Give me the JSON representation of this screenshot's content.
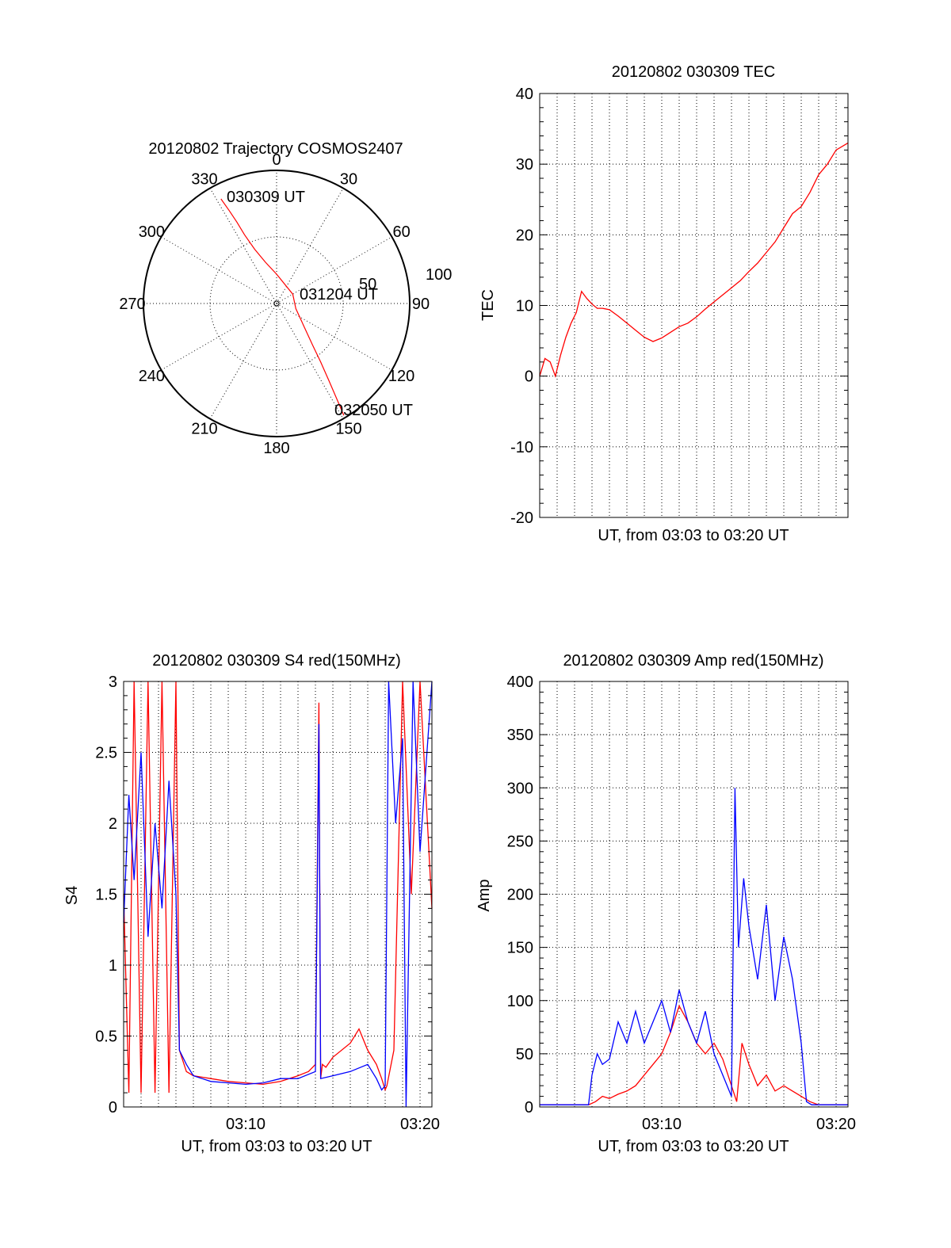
{
  "colors": {
    "red": "#ff0000",
    "blue": "#0000ff",
    "axis": "#000000"
  },
  "chart_data": [
    {
      "id": "polar",
      "type": "polar",
      "title": "20120802 Trajectory COSMOS2407",
      "r_ticks": [
        "50",
        "100"
      ],
      "azimuth_labels": [
        "0",
        "30",
        "60",
        "90",
        "120",
        "150",
        "180",
        "210",
        "240",
        "270",
        "300",
        "330"
      ],
      "zenith_range": [
        0,
        100
      ],
      "track": {
        "color": "red",
        "points": [
          [
            332,
            89
          ],
          [
            333,
            78
          ],
          [
            334,
            68
          ],
          [
            335,
            57
          ],
          [
            338,
            44
          ],
          [
            345,
            32
          ],
          [
            360,
            22
          ],
          [
            60,
            14
          ],
          [
            105,
            15
          ],
          [
            130,
            27
          ],
          [
            139,
            41
          ],
          [
            143,
            55
          ],
          [
            146,
            71
          ],
          [
            148,
            87
          ],
          [
            149,
            98
          ]
        ]
      },
      "annotations": [
        {
          "text": "030309 UT",
          "at": [
            332,
            89
          ]
        },
        {
          "text": "031204 UT",
          "at": [
            105,
            15
          ]
        },
        {
          "text": "032050 UT",
          "at": [
            149,
            98
          ]
        }
      ]
    },
    {
      "id": "tec",
      "type": "line",
      "title": "20120802 030309 TEC",
      "ylabel": "TEC",
      "xlabel": "UT, from 03:03 to 03:20 UT",
      "xlim": [
        0,
        17.68
      ],
      "ylim": [
        -20,
        40
      ],
      "yticks": [
        "-20",
        "-10",
        "0",
        "10",
        "20",
        "30",
        "40"
      ],
      "xticks": [],
      "series": [
        {
          "color": "red",
          "x": [
            0,
            0.3,
            0.6,
            0.9,
            1.2,
            1.5,
            1.8,
            2.1,
            2.4,
            2.7,
            3.0,
            3.3,
            3.6,
            4.0,
            4.5,
            5.0,
            5.5,
            6.0,
            6.5,
            7.0,
            7.5,
            8.0,
            8.5,
            9.0,
            9.5,
            10.0,
            10.5,
            11.0,
            11.5,
            12.0,
            12.5,
            13.0,
            13.5,
            14.0,
            14.5,
            15.0,
            15.5,
            16.0,
            16.5,
            17.0,
            17.68
          ],
          "y": [
            0,
            2.5,
            2,
            0,
            3,
            5.5,
            7.5,
            9,
            12,
            11,
            10.2,
            9.6,
            9.6,
            9.4,
            8.5,
            7.5,
            6.5,
            5.5,
            4.9,
            5.4,
            6.2,
            7.0,
            7.5,
            8.4,
            9.5,
            10.5,
            11.5,
            12.5,
            13.5,
            14.8,
            16,
            17.5,
            19,
            21,
            23,
            24,
            26,
            28.5,
            30,
            32,
            33
          ]
        }
      ]
    },
    {
      "id": "s4",
      "type": "line",
      "title": "20120802 030309 S4 red(150MHz)",
      "ylabel": "S4",
      "xlabel": "UT, from 03:03 to 03:20 UT",
      "xlim": [
        0,
        17.68
      ],
      "ylim": [
        0,
        3
      ],
      "yticks": [
        "0",
        "0.5",
        "1",
        "1.5",
        "2",
        "2.5",
        "3"
      ],
      "xticks": [
        {
          "v": 7,
          "t": "03:10"
        },
        {
          "v": 17,
          "t": "03:20"
        }
      ],
      "series": [
        {
          "color": "red",
          "x": [
            0,
            0.3,
            0.6,
            1.0,
            1.4,
            1.8,
            2.2,
            2.6,
            3.0,
            3.2,
            3.6,
            4.0,
            5.0,
            6.0,
            7.0,
            8.0,
            9.0,
            10.0,
            10.6,
            11.0,
            11.2,
            11.3,
            11.4,
            11.6,
            12.0,
            13.0,
            13.5,
            14.0,
            14.5,
            14.8,
            15.0,
            15.1,
            15.5,
            16.0,
            16.5,
            17.0,
            17.68
          ],
          "y": [
            1.5,
            0.1,
            3,
            0.1,
            3,
            0.1,
            3,
            0.1,
            3,
            0.4,
            0.25,
            0.22,
            0.2,
            0.18,
            0.17,
            0.16,
            0.18,
            0.22,
            0.25,
            0.3,
            2.85,
            0.2,
            0.3,
            0.28,
            0.35,
            0.45,
            0.55,
            0.4,
            0.3,
            0.2,
            0.12,
            0.15,
            0.4,
            3,
            1.5,
            3,
            1.4
          ]
        },
        {
          "color": "blue",
          "x": [
            0,
            0.3,
            0.6,
            1.0,
            1.4,
            1.8,
            2.2,
            2.6,
            3.0,
            3.2,
            3.6,
            4.0,
            5.0,
            6.0,
            7.0,
            8.0,
            9.0,
            10.0,
            11.0,
            11.2,
            11.3,
            12.0,
            13.0,
            14.0,
            14.5,
            14.8,
            15.0,
            15.2,
            15.6,
            16.0,
            16.2,
            16.6,
            17.0,
            17.68
          ],
          "y": [
            1.3,
            2.2,
            1.6,
            2.5,
            1.2,
            2.0,
            1.4,
            2.3,
            1.5,
            0.4,
            0.3,
            0.22,
            0.18,
            0.17,
            0.16,
            0.17,
            0.2,
            0.2,
            0.25,
            2.7,
            0.2,
            0.22,
            0.25,
            0.3,
            0.2,
            0.12,
            0.15,
            3,
            2.0,
            2.6,
            0.0,
            3,
            1.8,
            3
          ]
        }
      ]
    },
    {
      "id": "amp",
      "type": "line",
      "title": "20120802 030309 Amp red(150MHz)",
      "ylabel": "Amp",
      "xlabel": "UT, from 03:03 to 03:20 UT",
      "xlim": [
        0,
        17.68
      ],
      "ylim": [
        0,
        400
      ],
      "yticks": [
        "0",
        "50",
        "100",
        "150",
        "200",
        "250",
        "300",
        "350",
        "400"
      ],
      "xticks": [
        {
          "v": 7,
          "t": "03:10"
        },
        {
          "v": 17,
          "t": "03:20"
        }
      ],
      "series": [
        {
          "color": "red",
          "x": [
            0,
            2.8,
            3.2,
            3.6,
            4.0,
            4.5,
            5.0,
            5.5,
            6.0,
            6.5,
            7.0,
            7.5,
            8.0,
            8.5,
            9.0,
            9.5,
            10.0,
            10.5,
            11.0,
            11.3,
            11.6,
            12.0,
            12.5,
            13.0,
            13.5,
            14.0,
            14.5,
            15.0,
            15.5,
            16.0,
            17.68
          ],
          "y": [
            2,
            2,
            5,
            10,
            8,
            12,
            15,
            20,
            30,
            40,
            50,
            70,
            95,
            80,
            60,
            50,
            60,
            45,
            20,
            5,
            60,
            40,
            20,
            30,
            15,
            20,
            15,
            10,
            5,
            2,
            2
          ]
        },
        {
          "color": "blue",
          "x": [
            0,
            2.8,
            3.0,
            3.3,
            3.6,
            4.0,
            4.5,
            5.0,
            5.5,
            6.0,
            6.5,
            7.0,
            7.5,
            8.0,
            8.5,
            9.0,
            9.5,
            10.0,
            10.5,
            11.0,
            11.2,
            11.4,
            11.7,
            12.0,
            12.5,
            13.0,
            13.5,
            14.0,
            14.5,
            15.0,
            15.3,
            15.6,
            16.0,
            17.68
          ],
          "y": [
            2,
            2,
            30,
            50,
            40,
            45,
            80,
            60,
            90,
            60,
            80,
            100,
            70,
            110,
            80,
            60,
            90,
            50,
            30,
            10,
            300,
            150,
            215,
            170,
            120,
            190,
            100,
            160,
            120,
            60,
            5,
            2,
            2,
            2
          ]
        }
      ]
    }
  ]
}
